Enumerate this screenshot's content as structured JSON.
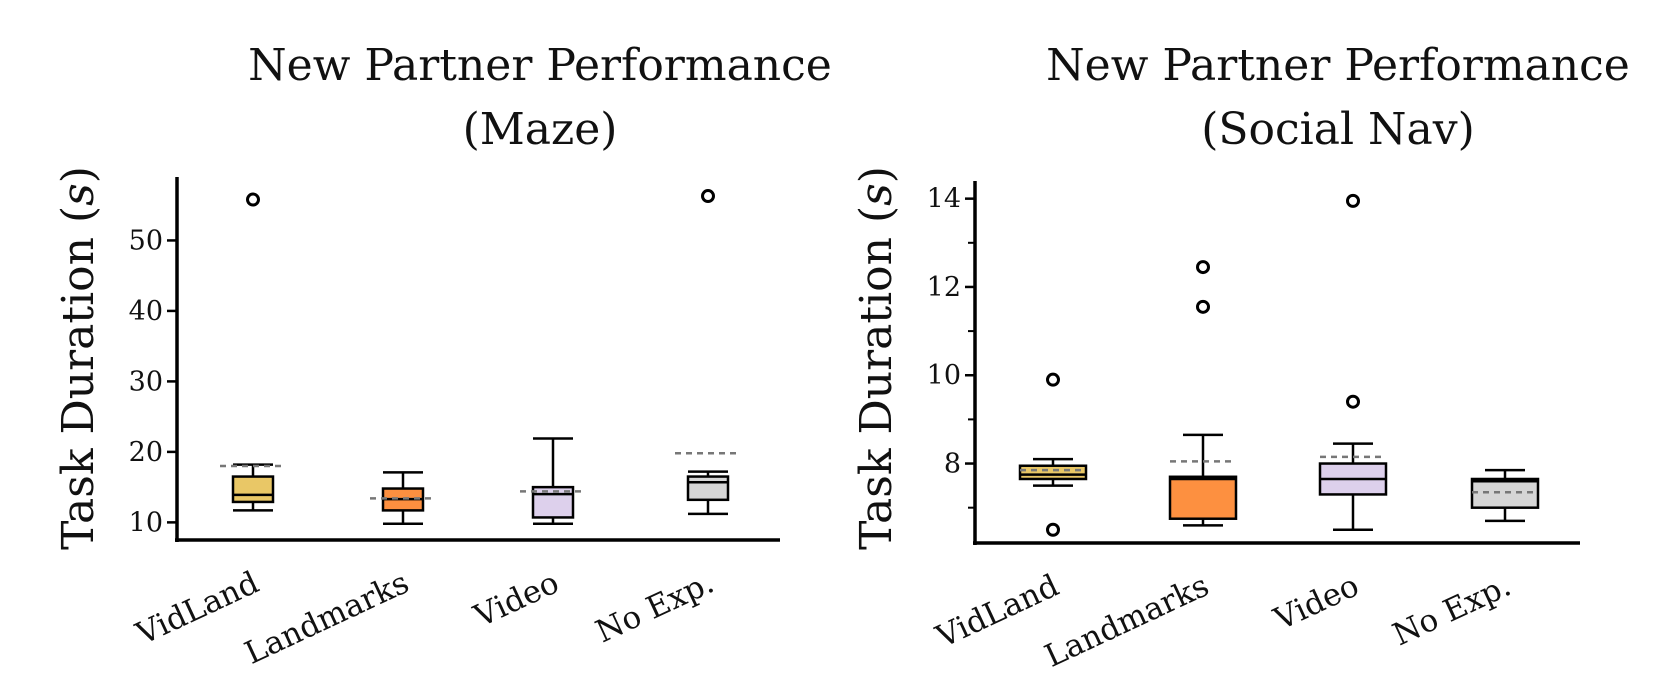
{
  "chart_data": [
    {
      "type": "boxplot",
      "title": "New Partner Performance",
      "subtitle": "(Maze)",
      "ylabel": "Task Duration (s)",
      "ylabel_text": "Task Duration (",
      "ylabel_var": "s",
      "ylabel_close": ")",
      "ylim": [
        7.5,
        59
      ],
      "yticks": [
        10,
        20,
        30,
        40,
        50
      ],
      "minor_ticks": false,
      "categories": [
        "VidLand",
        "Landmarks",
        "Video",
        "No Exp."
      ],
      "colors": [
        "#e9c766",
        "#fd9040",
        "#ddd0ec",
        "#d6d6d6"
      ],
      "series": [
        {
          "name": "VidLand",
          "whisker_low": 11.7,
          "q1": 12.9,
          "median": 13.9,
          "q3": 16.5,
          "whisker_high": 18.2,
          "mean": 18.0,
          "outliers": [
            55.8
          ]
        },
        {
          "name": "Landmarks",
          "whisker_low": 9.8,
          "q1": 11.7,
          "median": 13.3,
          "q3": 14.8,
          "whisker_high": 17.1,
          "mean": 13.4,
          "outliers": []
        },
        {
          "name": "Video",
          "whisker_low": 9.8,
          "q1": 10.7,
          "median": 14.0,
          "q3": 15.0,
          "whisker_high": 21.9,
          "mean": 14.4,
          "outliers": []
        },
        {
          "name": "No Exp.",
          "whisker_low": 11.2,
          "q1": 13.2,
          "median": 15.7,
          "q3": 16.5,
          "whisker_high": 17.2,
          "mean": 19.8,
          "outliers": [
            56.3
          ]
        }
      ]
    },
    {
      "type": "boxplot",
      "title": "New Partner Performance",
      "subtitle": "(Social Nav)",
      "ylabel": "Task Duration (s)",
      "ylabel_text": "Task Duration (",
      "ylabel_var": "s",
      "ylabel_close": ")",
      "ylim": [
        6.2,
        14.4
      ],
      "yticks": [
        8,
        10,
        12,
        14
      ],
      "minor_ticks": true,
      "categories": [
        "VidLand",
        "Landmarks",
        "Video",
        "No Exp."
      ],
      "colors": [
        "#e9c766",
        "#fd9040",
        "#ddd0ec",
        "#d6d6d6"
      ],
      "series": [
        {
          "name": "VidLand",
          "whisker_low": 7.5,
          "q1": 7.65,
          "median": 7.75,
          "q3": 7.95,
          "whisker_high": 8.1,
          "mean": 7.85,
          "outliers": [
            9.9,
            6.5
          ]
        },
        {
          "name": "Landmarks",
          "whisker_low": 6.6,
          "q1": 6.75,
          "median": 7.65,
          "q3": 7.7,
          "whisker_high": 8.65,
          "mean": 8.05,
          "outliers": [
            12.45,
            11.55
          ]
        },
        {
          "name": "Video",
          "whisker_low": 6.5,
          "q1": 7.3,
          "median": 7.65,
          "q3": 8.0,
          "whisker_high": 8.45,
          "mean": 8.15,
          "outliers": [
            13.95,
            9.4
          ]
        },
        {
          "name": "No Exp.",
          "whisker_low": 6.7,
          "q1": 7.0,
          "median": 7.6,
          "q3": 7.65,
          "whisker_high": 7.85,
          "mean": 7.35,
          "outliers": []
        }
      ]
    }
  ]
}
